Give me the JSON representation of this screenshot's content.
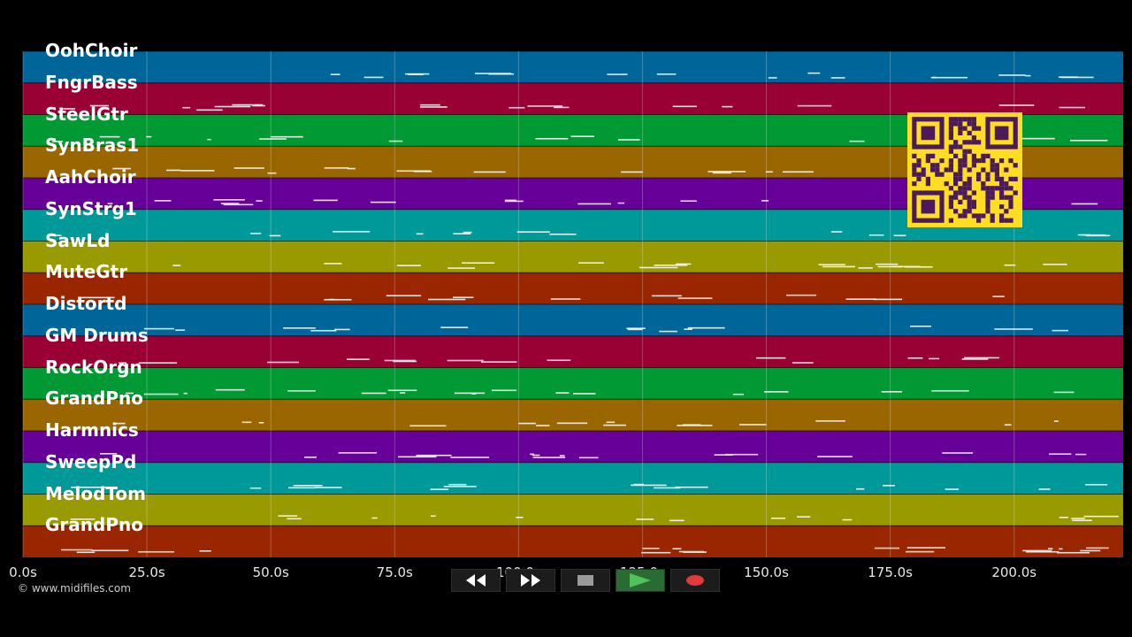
{
  "tracks": [
    {
      "name": "OohChoir",
      "color": "#006699"
    },
    {
      "name": "FngrBass",
      "color": "#990033"
    },
    {
      "name": "SteelGtr",
      "color": "#009933"
    },
    {
      "name": "SynBras1",
      "color": "#996600"
    },
    {
      "name": "AahChoir",
      "color": "#660099"
    },
    {
      "name": "SynStrg1",
      "color": "#009999"
    },
    {
      "name": "SawLd",
      "color": "#999900"
    },
    {
      "name": "MuteGtr",
      "color": "#992600"
    },
    {
      "name": "Distortd",
      "color": "#006699"
    },
    {
      "name": "GM Drums",
      "color": "#990033"
    },
    {
      "name": "RockOrgn",
      "color": "#009933"
    },
    {
      "name": "GrandPno",
      "color": "#996600"
    },
    {
      "name": "Harmnics",
      "color": "#660099"
    },
    {
      "name": "SweepPd",
      "color": "#009999"
    },
    {
      "name": "MelodTom",
      "color": "#999900"
    },
    {
      "name": "GrandPno",
      "color": "#992600"
    }
  ],
  "timeline": {
    "max_seconds": 222,
    "ticks": [
      {
        "t": 0,
        "label": "0.0s"
      },
      {
        "t": 25,
        "label": "25.0s"
      },
      {
        "t": 50,
        "label": "50.0s"
      },
      {
        "t": 75,
        "label": "75.0s"
      },
      {
        "t": 100,
        "label": "100.0s"
      },
      {
        "t": 125,
        "label": "125.0s"
      },
      {
        "t": 150,
        "label": "150.0s"
      },
      {
        "t": 175,
        "label": "175.0s"
      },
      {
        "t": 200,
        "label": "200.0s"
      }
    ]
  },
  "copyright": "© www.midifiles.com",
  "transport": {
    "rewind_icon": "rewind-icon",
    "forward_icon": "fast-forward-icon",
    "stop_icon": "stop-icon",
    "play_icon": "play-icon",
    "record_icon": "record-icon",
    "play_color": "#4fc35a",
    "record_color": "#e03a3a"
  },
  "qr_color": "#ffdd22"
}
